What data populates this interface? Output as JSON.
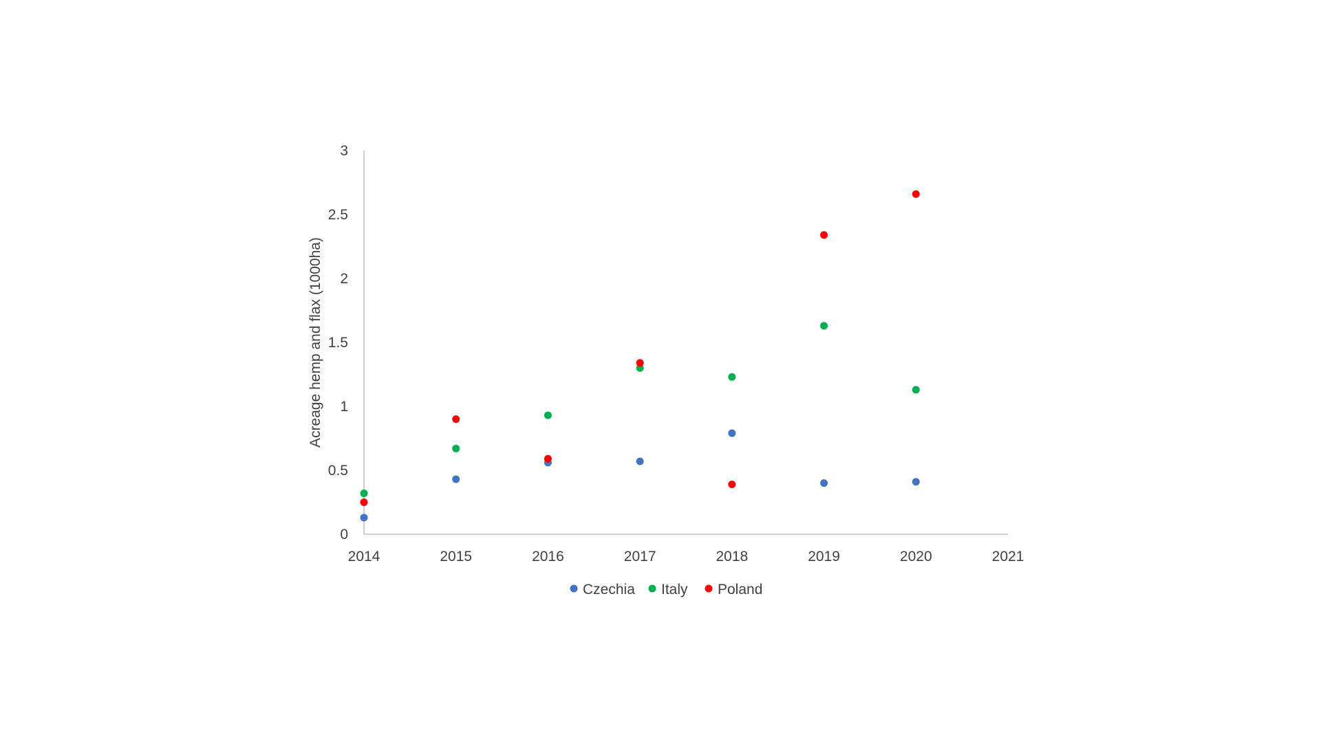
{
  "chart_data": {
    "type": "scatter",
    "title": "",
    "xlabel": "",
    "ylabel": "Acreage hemp and flax (1000ha)",
    "xlim": [
      2014,
      2021
    ],
    "ylim": [
      0,
      3
    ],
    "xticks": [
      "2014",
      "2015",
      "2016",
      "2017",
      "2018",
      "2019",
      "2020",
      "2021"
    ],
    "yticks": [
      "0",
      "0.5",
      "1",
      "1.5",
      "2",
      "2.5",
      "3"
    ],
    "grid": false,
    "legend_position": "bottom",
    "series": [
      {
        "name": "Czechia",
        "color": "#4472c4",
        "x": [
          2014,
          2015,
          2016,
          2017,
          2018,
          2019,
          2020
        ],
        "y": [
          0.13,
          0.43,
          0.56,
          0.57,
          0.79,
          0.4,
          0.41
        ]
      },
      {
        "name": "Italy",
        "color": "#00b050",
        "x": [
          2014,
          2015,
          2016,
          2017,
          2018,
          2019,
          2020
        ],
        "y": [
          0.32,
          0.67,
          0.93,
          1.3,
          1.23,
          1.63,
          1.13
        ]
      },
      {
        "name": "Poland",
        "color": "#ff0000",
        "x": [
          2014,
          2015,
          2016,
          2017,
          2018,
          2019,
          2020
        ],
        "y": [
          0.25,
          0.9,
          0.59,
          1.34,
          0.39,
          2.34,
          2.66
        ]
      }
    ]
  }
}
